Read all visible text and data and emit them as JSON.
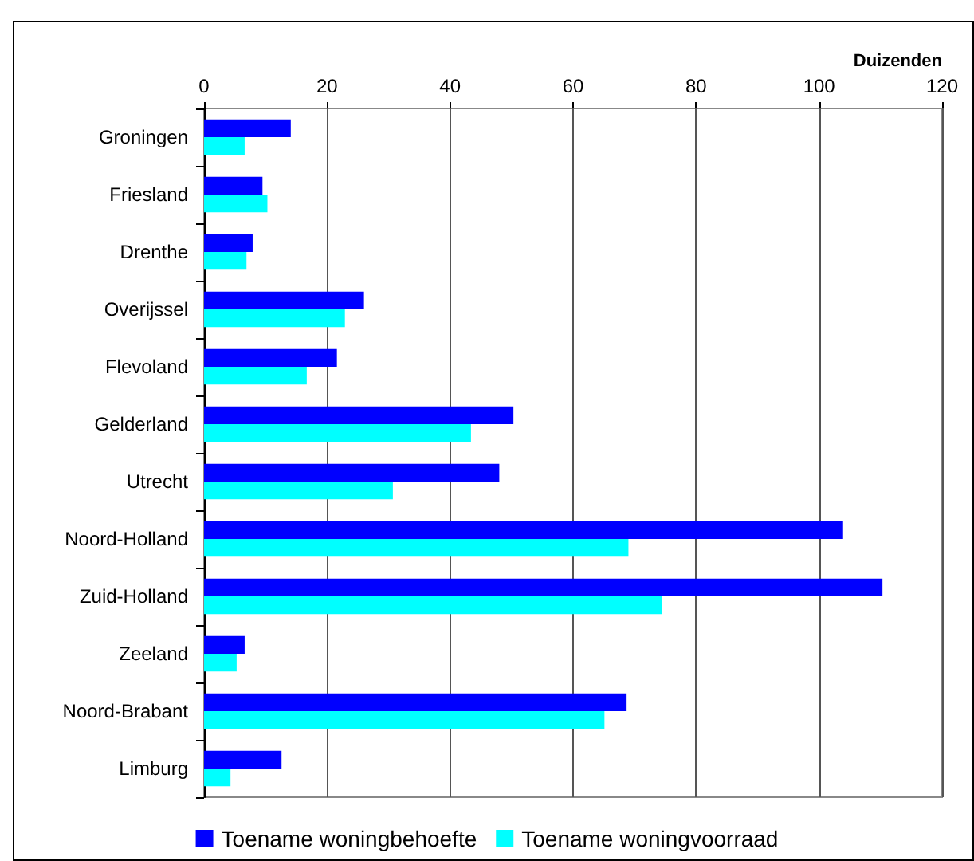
{
  "chart_data": {
    "type": "bar",
    "orientation": "horizontal",
    "xlabel": "Duizenden",
    "categories": [
      "Groningen",
      "Friesland",
      "Drenthe",
      "Overijssel",
      "Flevoland",
      "Gelderland",
      "Utrecht",
      "Noord-Holland",
      "Zuid-Holland",
      "Zeeland",
      "Noord-Brabant",
      "Limburg"
    ],
    "series": [
      {
        "name": "Toename woningbehoefte",
        "color": "#0000ff",
        "values": [
          14.1,
          9.5,
          7.9,
          26.0,
          21.6,
          50.3,
          48.0,
          103.9,
          110.3,
          6.6,
          68.7,
          12.6
        ]
      },
      {
        "name": "Toename woningvoorraad",
        "color": "#00ffff",
        "values": [
          6.6,
          10.3,
          6.9,
          22.9,
          16.7,
          43.4,
          30.7,
          69.0,
          74.4,
          5.3,
          65.1,
          4.3
        ]
      }
    ],
    "xlim": [
      0,
      120
    ],
    "xticks": [
      0,
      20,
      40,
      60,
      80,
      100,
      120
    ],
    "grid": "x",
    "legend": "bottom"
  }
}
